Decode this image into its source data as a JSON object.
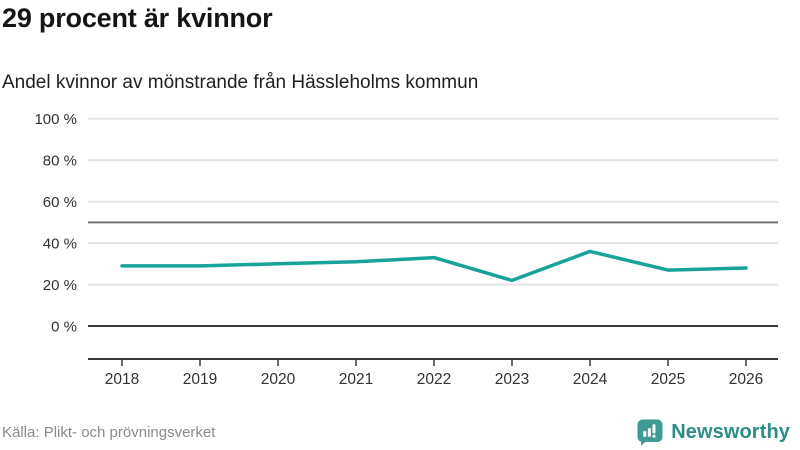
{
  "header": {
    "title": "29 procent är kvinnor",
    "subtitle": "Andel kvinnor av mönstrande från Hässleholms kommun"
  },
  "footer": {
    "source": "Källa: Plikt- och prövningsverket",
    "brand": "Newsworthy",
    "brand_icon": "newsworthy-speech-bubble-bar-chart-icon"
  },
  "colors": {
    "line": "#17a398",
    "grid_light": "#e4e4e4",
    "grid_mid": "#737373",
    "axis_dark": "#3a3a3a",
    "text_tick": "#333333",
    "text_muted": "#8a8a8a",
    "brand_teal": "#3d9b93"
  },
  "chart_data": {
    "type": "line",
    "title": "29 procent är kvinnor",
    "subtitle": "Andel kvinnor av mönstrande från Hässleholms kommun",
    "x": [
      2018,
      2019,
      2020,
      2021,
      2022,
      2023,
      2024,
      2025,
      2026
    ],
    "series": [
      {
        "name": "Andel kvinnor av mönstrande",
        "values": [
          29,
          29,
          30,
          31,
          33,
          22,
          36,
          27,
          28
        ]
      }
    ],
    "xlabel": "",
    "ylabel": "",
    "ylim": [
      0,
      100
    ],
    "yticks": [
      0,
      20,
      40,
      60,
      80,
      100
    ],
    "ytick_format": "{v} %",
    "reference_line": 50,
    "grid": true,
    "legend": false,
    "source": "Källa: Plikt- och prövningsverket"
  }
}
